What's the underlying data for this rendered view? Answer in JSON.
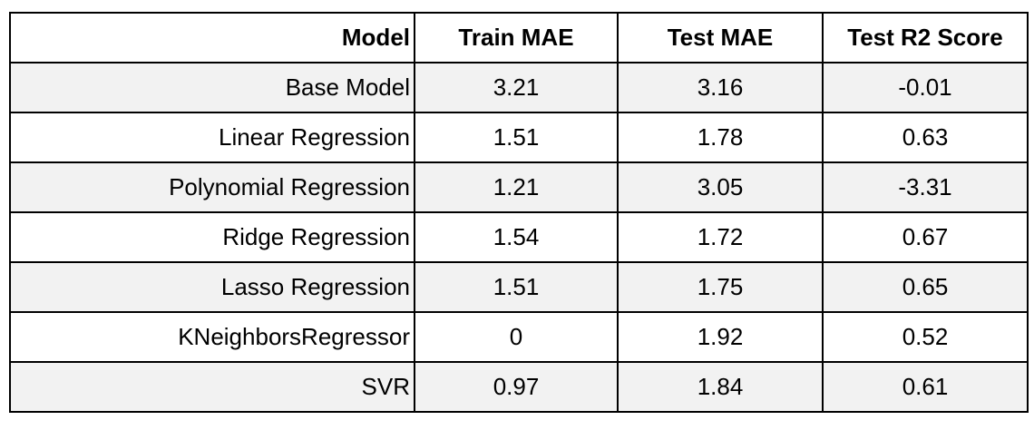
{
  "table": {
    "headers": [
      "Model",
      "Train MAE",
      "Test MAE",
      "Test R2 Score"
    ],
    "rows": [
      [
        "Base Model",
        "3.21",
        "3.16",
        "-0.01"
      ],
      [
        "Linear Regression",
        "1.51",
        "1.78",
        "0.63"
      ],
      [
        "Polynomial Regression",
        "1.21",
        "3.05",
        "-3.31"
      ],
      [
        "Ridge Regression",
        "1.54",
        "1.72",
        "0.67"
      ],
      [
        "Lasso Regression",
        "1.51",
        "1.75",
        "0.65"
      ],
      [
        "KNeighborsRegressor",
        "0",
        "1.92",
        "0.52"
      ],
      [
        "SVR",
        "0.97",
        "1.84",
        "0.61"
      ]
    ]
  }
}
